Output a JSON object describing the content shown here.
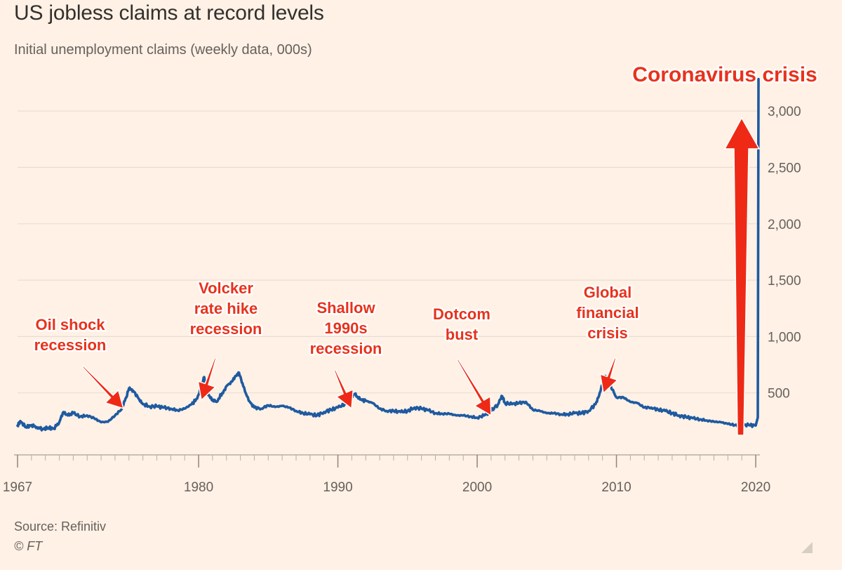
{
  "chart_data": {
    "type": "line",
    "title": "US jobless claims at record levels",
    "subtitle": "Initial unemployment claims (weekly data, 000s)",
    "ylim": [
      0,
      3300
    ],
    "xlim": [
      1967,
      2020.25
    ],
    "y_ticks": [
      500,
      1000,
      1500,
      2000,
      2500,
      3000
    ],
    "y_tick_labels": [
      "500",
      "1,000",
      "1,500",
      "2,000",
      "2,500",
      "3,000"
    ],
    "x_ticks": [
      1967,
      1980,
      1990,
      2000,
      2010,
      2020
    ],
    "x_tick_labels": [
      "1967",
      "1980",
      "1990",
      "2000",
      "2010",
      "2020"
    ],
    "grid": "horizontal",
    "series": [
      {
        "color": "#1e5aa0",
        "points": [
          [
            1967.0,
            210
          ],
          [
            1967.2,
            250
          ],
          [
            1967.6,
            195
          ],
          [
            1968.0,
            215
          ],
          [
            1968.4,
            195
          ],
          [
            1968.8,
            180
          ],
          [
            1969.2,
            190
          ],
          [
            1969.6,
            185
          ],
          [
            1970.0,
            240
          ],
          [
            1970.3,
            330
          ],
          [
            1970.6,
            300
          ],
          [
            1971.0,
            320
          ],
          [
            1971.5,
            290
          ],
          [
            1972.0,
            300
          ],
          [
            1972.5,
            275
          ],
          [
            1973.0,
            240
          ],
          [
            1973.5,
            245
          ],
          [
            1974.0,
            300
          ],
          [
            1974.5,
            360
          ],
          [
            1974.8,
            460
          ],
          [
            1975.0,
            540
          ],
          [
            1975.3,
            520
          ],
          [
            1975.7,
            450
          ],
          [
            1976.0,
            400
          ],
          [
            1976.5,
            380
          ],
          [
            1977.0,
            380
          ],
          [
            1977.5,
            370
          ],
          [
            1978.0,
            360
          ],
          [
            1978.5,
            345
          ],
          [
            1979.0,
            360
          ],
          [
            1979.5,
            400
          ],
          [
            1979.9,
            450
          ],
          [
            1980.2,
            560
          ],
          [
            1980.4,
            640
          ],
          [
            1980.7,
            480
          ],
          [
            1981.0,
            430
          ],
          [
            1981.3,
            420
          ],
          [
            1981.7,
            500
          ],
          [
            1982.0,
            560
          ],
          [
            1982.4,
            600
          ],
          [
            1982.7,
            650
          ],
          [
            1982.9,
            680
          ],
          [
            1983.2,
            560
          ],
          [
            1983.6,
            430
          ],
          [
            1984.0,
            370
          ],
          [
            1984.5,
            360
          ],
          [
            1985.0,
            390
          ],
          [
            1985.5,
            375
          ],
          [
            1986.0,
            385
          ],
          [
            1986.5,
            370
          ],
          [
            1987.0,
            340
          ],
          [
            1987.5,
            320
          ],
          [
            1988.0,
            310
          ],
          [
            1988.5,
            300
          ],
          [
            1989.0,
            330
          ],
          [
            1989.5,
            350
          ],
          [
            1990.0,
            370
          ],
          [
            1990.5,
            400
          ],
          [
            1990.9,
            460
          ],
          [
            1991.2,
            490
          ],
          [
            1991.6,
            440
          ],
          [
            1992.0,
            430
          ],
          [
            1992.5,
            410
          ],
          [
            1993.0,
            360
          ],
          [
            1993.5,
            340
          ],
          [
            1994.0,
            340
          ],
          [
            1994.5,
            330
          ],
          [
            1995.0,
            340
          ],
          [
            1995.5,
            370
          ],
          [
            1996.0,
            360
          ],
          [
            1996.5,
            345
          ],
          [
            1997.0,
            320
          ],
          [
            1997.5,
            315
          ],
          [
            1998.0,
            315
          ],
          [
            1998.5,
            300
          ],
          [
            1999.0,
            300
          ],
          [
            1999.5,
            290
          ],
          [
            2000.0,
            280
          ],
          [
            2000.5,
            300
          ],
          [
            2001.0,
            340
          ],
          [
            2001.5,
            400
          ],
          [
            2001.8,
            470
          ],
          [
            2002.0,
            410
          ],
          [
            2002.5,
            400
          ],
          [
            2003.0,
            410
          ],
          [
            2003.5,
            420
          ],
          [
            2004.0,
            350
          ],
          [
            2004.5,
            340
          ],
          [
            2005.0,
            320
          ],
          [
            2005.5,
            320
          ],
          [
            2006.0,
            310
          ],
          [
            2006.5,
            310
          ],
          [
            2007.0,
            320
          ],
          [
            2007.5,
            320
          ],
          [
            2008.0,
            340
          ],
          [
            2008.5,
            400
          ],
          [
            2008.8,
            500
          ],
          [
            2009.2,
            650
          ],
          [
            2009.5,
            580
          ],
          [
            2010.0,
            460
          ],
          [
            2010.5,
            460
          ],
          [
            2011.0,
            420
          ],
          [
            2011.5,
            410
          ],
          [
            2012.0,
            370
          ],
          [
            2012.5,
            370
          ],
          [
            2013.0,
            350
          ],
          [
            2013.5,
            340
          ],
          [
            2014.0,
            320
          ],
          [
            2014.5,
            300
          ],
          [
            2015.0,
            285
          ],
          [
            2015.5,
            275
          ],
          [
            2016.0,
            265
          ],
          [
            2016.5,
            255
          ],
          [
            2017.0,
            245
          ],
          [
            2017.5,
            240
          ],
          [
            2018.0,
            225
          ],
          [
            2018.5,
            215
          ],
          [
            2019.0,
            215
          ],
          [
            2019.5,
            215
          ],
          [
            2020.0,
            210
          ],
          [
            2020.15,
            282
          ],
          [
            2020.2,
            3283
          ]
        ]
      }
    ],
    "annotations": [
      {
        "lines": [
          "Oil shock",
          "recession"
        ],
        "size": "normal",
        "x": 1975.1,
        "y": 560
      },
      {
        "lines": [
          "Volcker",
          "rate hike",
          "recession"
        ],
        "size": "normal",
        "x": 1980.3,
        "y": 650
      },
      {
        "lines": [
          "Shallow",
          "1990s",
          "recession"
        ],
        "size": "normal",
        "x": 1991.1,
        "y": 500
      },
      {
        "lines": [
          "Dotcom",
          "bust"
        ],
        "size": "normal",
        "x": 2001.2,
        "y": 470
      },
      {
        "lines": [
          "Global",
          "financial",
          "crisis"
        ],
        "size": "normal",
        "x": 2009.2,
        "y": 680
      },
      {
        "lines": [
          "Coronavirus crisis"
        ],
        "size": "big",
        "x": 2018.9,
        "y": 3100
      }
    ]
  },
  "footer": {
    "source": "Source: Refinitiv",
    "copyright": "© FT"
  }
}
